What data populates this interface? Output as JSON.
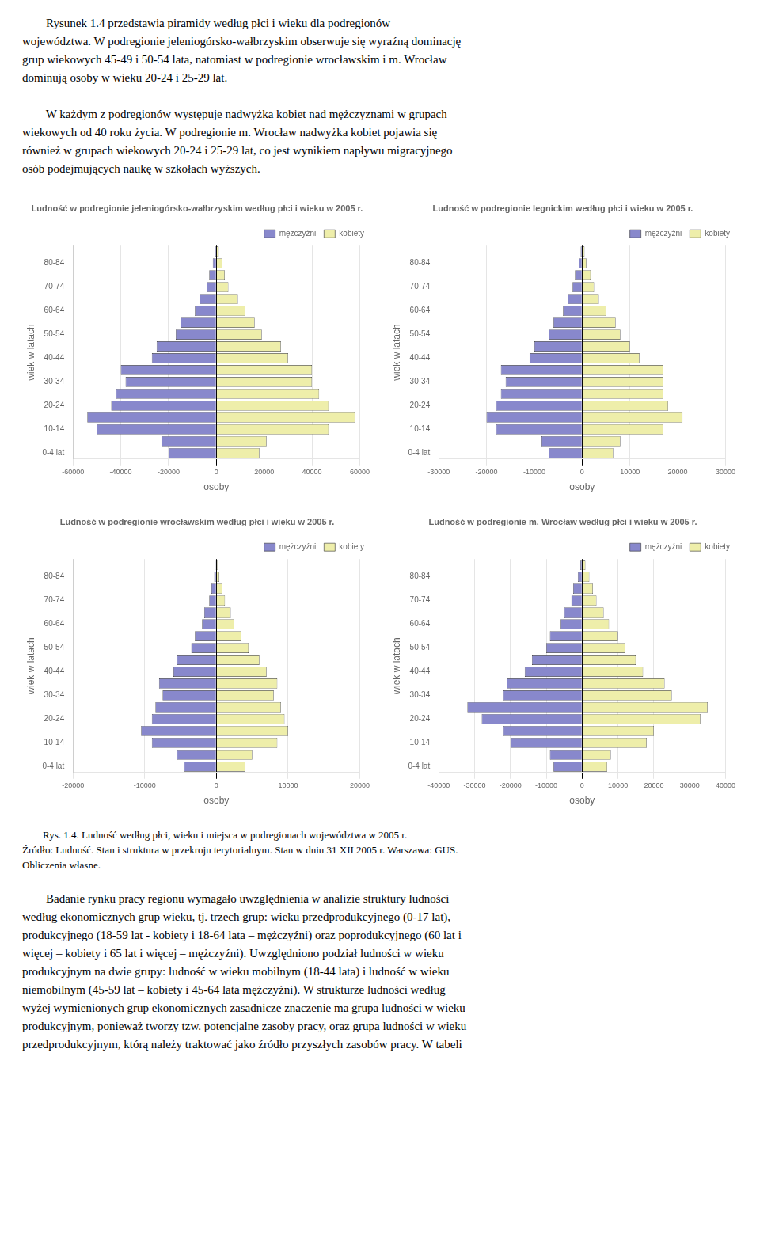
{
  "text_top": [
    [
      "        Rysunek 1.4 przedstawia piramidy według płci i wieku dla podregionów",
      "województwa. W podregionie jeleniogórsko-wałbrzyskim obserwuje się wyraźną dominację",
      "grup wiekowych 45-49 i 50-54 lata, natomiast w podregionie wrocławskim i m. Wrocław",
      "dominują osoby w wieku 20-24 i 25-29 lat."
    ],
    [
      "        W każdym z podregionów występuje nadwyżka kobiet nad mężczyznami w grupach",
      "wiekowych od 40 roku życia. W podregionie m. Wrocław nadwyżka kobiet pojawia się",
      "również w grupach wiekowych 20-24 i 25-29 lat, co jest wynikiem napływu migracyjnego",
      "osób podejmujących naukę w szkołach wyższych."
    ]
  ],
  "caption": [
    "        Rys. 1.4. Ludność według płci, wieku i miejsca w podregionach województwa w 2005 r.",
    "Źródło: Ludność. Stan i struktura w przekroju terytorialnym. Stan w dniu 31 XII 2005 r. Warszawa: GUS.",
    "Obliczenia własne."
  ],
  "text_bottom": [
    "        Badanie rynku pracy regionu wymagało uwzględnienia w analizie struktury ludności",
    "według ekonomicznych grup wieku, tj. trzech grup: wieku przedprodukcyjnego (0-17 lat),",
    "produkcyjnego (18-59 lat - kobiety i 18-64 lata – mężczyźni) oraz poprodukcyjnego (60 lat i",
    "więcej – kobiety i 65 lat i więcej – mężczyźni). Uwzględniono podział ludności w wieku",
    "produkcyjnym na dwie grupy: ludność w wieku mobilnym (18-44 lata) i ludność w wieku",
    "niemobilnym (45-59 lat – kobiety i 45-64 lata mężczyźni). W strukturze ludności według",
    "wyżej wymienionych grup ekonomicznych zasadnicze znaczenie ma grupa ludności w wieku",
    "produkcyjnym, ponieważ tworzy tzw. potencjalne zasoby pracy, oraz grupa ludności w wieku",
    "przedprodukcyjnym, którą należy traktować jako źródło przyszłych zasobów pracy. W tabeli"
  ],
  "chart_data": [
    {
      "type": "bar",
      "orientation": "horizontal",
      "title": "Ludność w podregionie jeleniogórsko-wałbrzyskim według płci i wieku w 2005 r.",
      "xlabel": "osoby",
      "ylabel": "wiek w latach",
      "categories": [
        "0-4 lat",
        null,
        "10-14",
        null,
        "20-24",
        null,
        "30-34",
        null,
        "40-44",
        null,
        "50-54",
        null,
        "60-64",
        null,
        "70-74",
        null,
        "80-84",
        null
      ],
      "series": [
        {
          "name": "mężczyźni",
          "color": "#8888cc",
          "values": [
            -20000,
            -23000,
            -50000,
            -54000,
            -44000,
            -42000,
            -38000,
            -40000,
            -27000,
            -25000,
            -17000,
            -15000,
            -9000,
            -7000,
            -4000,
            -3000,
            -1500,
            -500
          ]
        },
        {
          "name": "kobiety",
          "color": "#eeeeaa",
          "values": [
            18000,
            21000,
            47000,
            58000,
            47000,
            43000,
            40000,
            40000,
            30000,
            27000,
            19000,
            16000,
            12000,
            9000,
            5000,
            3500,
            2500,
            1000
          ]
        }
      ],
      "xlim": [
        -60000,
        60000
      ],
      "xticks": [
        -60000,
        -40000,
        -20000,
        0,
        20000,
        40000,
        60000
      ],
      "grid": true,
      "legend": "upper right"
    },
    {
      "type": "bar",
      "orientation": "horizontal",
      "title": "Ludność w podregionie legnickim według płci i wieku w 2005 r.",
      "xlabel": "osoby",
      "ylabel": "wiek w latach",
      "categories": [
        "0-4 lat",
        null,
        "10-14",
        null,
        "20-24",
        null,
        "30-34",
        null,
        "40-44",
        null,
        "50-54",
        null,
        "60-64",
        null,
        "70-74",
        null,
        "80-84",
        null
      ],
      "series": [
        {
          "name": "mężczyźni",
          "color": "#8888cc",
          "values": [
            -7000,
            -8500,
            -18000,
            -20000,
            -18000,
            -17000,
            -16000,
            -17000,
            -11000,
            -10000,
            -7000,
            -6000,
            -4000,
            -3000,
            -2000,
            -1500,
            -700,
            -300
          ]
        },
        {
          "name": "kobiety",
          "color": "#eeeeaa",
          "values": [
            6500,
            8000,
            17000,
            21000,
            18000,
            17000,
            17000,
            17000,
            12000,
            10000,
            8000,
            7000,
            5000,
            3500,
            2500,
            1800,
            900,
            500
          ]
        }
      ],
      "xlim": [
        -30000,
        30000
      ],
      "xticks": [
        -30000,
        -20000,
        -10000,
        0,
        10000,
        20000,
        30000
      ],
      "grid": true,
      "legend": "upper right"
    },
    {
      "type": "bar",
      "orientation": "horizontal",
      "title": "Ludność w podregionie wrocławskim według płci i wieku w 2005 r.",
      "xlabel": "osoby",
      "ylabel": "wiek w latach",
      "categories": [
        "0-4 lat",
        null,
        "10-14",
        null,
        "20-24",
        null,
        "30-34",
        null,
        "40-44",
        null,
        "50-54",
        null,
        "60-64",
        null,
        "70-74",
        null,
        "80-84",
        null
      ],
      "series": [
        {
          "name": "mężczyźni",
          "color": "#8888cc",
          "values": [
            -4500,
            -5500,
            -9000,
            -10500,
            -9000,
            -8500,
            -7500,
            -8000,
            -6000,
            -5500,
            -3500,
            -3000,
            -2000,
            -1700,
            -1000,
            -700,
            -300,
            -100
          ]
        },
        {
          "name": "kobiety",
          "color": "#eeeeaa",
          "values": [
            4000,
            5000,
            8500,
            10000,
            9500,
            9000,
            8000,
            8500,
            7000,
            6000,
            4500,
            3500,
            2500,
            2000,
            1200,
            800,
            400,
            150
          ]
        }
      ],
      "xlim": [
        -20000,
        20000
      ],
      "xticks": [
        -20000,
        -10000,
        0,
        10000,
        20000
      ],
      "grid": true,
      "legend": "upper right"
    },
    {
      "type": "bar",
      "orientation": "horizontal",
      "title": "Ludność w podregionie m. Wrocław według płci i wieku w 2005 r.",
      "xlabel": "osoby",
      "ylabel": "wiek w latach",
      "categories": [
        "0-4 lat",
        null,
        "10-14",
        null,
        "20-24",
        null,
        "30-34",
        null,
        "40-44",
        null,
        "50-54",
        null,
        "60-64",
        null,
        "70-74",
        null,
        "80-84",
        null
      ],
      "series": [
        {
          "name": "mężczyźni",
          "color": "#8888cc",
          "values": [
            -8000,
            -9000,
            -20000,
            -22000,
            -28000,
            -32000,
            -22000,
            -21000,
            -16000,
            -14000,
            -10000,
            -9000,
            -6000,
            -5000,
            -3000,
            -2500,
            -1200,
            -500
          ]
        },
        {
          "name": "kobiety",
          "color": "#eeeeaa",
          "values": [
            7000,
            8000,
            18000,
            20000,
            33000,
            35000,
            25000,
            23000,
            17000,
            15000,
            12000,
            10000,
            7500,
            6000,
            4000,
            3000,
            2000,
            900
          ]
        }
      ],
      "xlim": [
        -40000,
        40000
      ],
      "xticks": [
        -40000,
        -30000,
        -20000,
        -10000,
        0,
        10000,
        20000,
        30000,
        40000
      ],
      "grid": true,
      "legend": "upper right"
    }
  ]
}
